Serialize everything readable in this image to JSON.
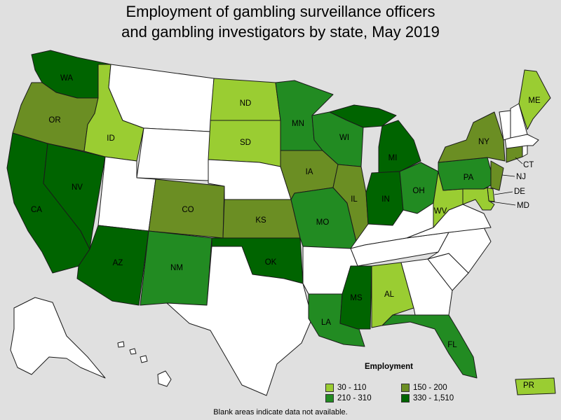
{
  "title": {
    "line1": "Employment of gambling surveillance officers",
    "line2": "and gambling investigators by state, May 2019"
  },
  "legend": {
    "title": "Employment",
    "items": [
      {
        "label": "30 - 110",
        "color": "#9acd32"
      },
      {
        "label": "150 - 200",
        "color": "#6b8e23"
      },
      {
        "label": "210 - 310",
        "color": "#228b22"
      },
      {
        "label": "330 - 1,510",
        "color": "#006400"
      }
    ]
  },
  "footnote": "Blank areas indicate data not available.",
  "state_labels": {
    "WA": "WA",
    "OR": "OR",
    "CA": "CA",
    "NV": "NV",
    "ID": "ID",
    "AZ": "AZ",
    "ND": "ND",
    "SD": "SD",
    "CO": "CO",
    "NM": "NM",
    "KS": "KS",
    "OK": "OK",
    "MN": "MN",
    "IA": "IA",
    "MO": "MO",
    "WI": "WI",
    "IL": "IL",
    "MI": "MI",
    "IN": "IN",
    "OH": "OH",
    "PA": "PA",
    "NY": "NY",
    "ME": "ME",
    "CT": "CT",
    "NJ": "NJ",
    "DE": "DE",
    "MD": "MD",
    "WV": "WV",
    "AL": "AL",
    "MS": "MS",
    "LA": "LA",
    "FL": "FL",
    "PR": "PR"
  },
  "map_data": {
    "ranges": [
      "30 - 110",
      "150 - 200",
      "210 - 310",
      "330 - 1,510"
    ],
    "states": {
      "ID": "30 - 110",
      "ND": "30 - 110",
      "SD": "30 - 110",
      "ME": "30 - 110",
      "WV": "30 - 110",
      "AL": "30 - 110",
      "DE": "30 - 110",
      "MD": "30 - 110",
      "PR": "30 - 110",
      "OR": "150 - 200",
      "CO": "150 - 200",
      "KS": "150 - 200",
      "IA": "150 - 200",
      "IL": "150 - 200",
      "NY": "150 - 200",
      "CT": "150 - 200",
      "NJ": "150 - 200",
      "MN": "210 - 310",
      "WI": "210 - 310",
      "MO": "210 - 310",
      "NM": "210 - 310",
      "OH": "210 - 310",
      "PA": "210 - 310",
      "LA": "210 - 310",
      "FL": "210 - 310",
      "WA": "330 - 1,510",
      "CA": "330 - 1,510",
      "NV": "330 - 1,510",
      "AZ": "330 - 1,510",
      "OK": "330 - 1,510",
      "MI": "330 - 1,510",
      "IN": "330 - 1,510",
      "MS": "330 - 1,510"
    }
  }
}
